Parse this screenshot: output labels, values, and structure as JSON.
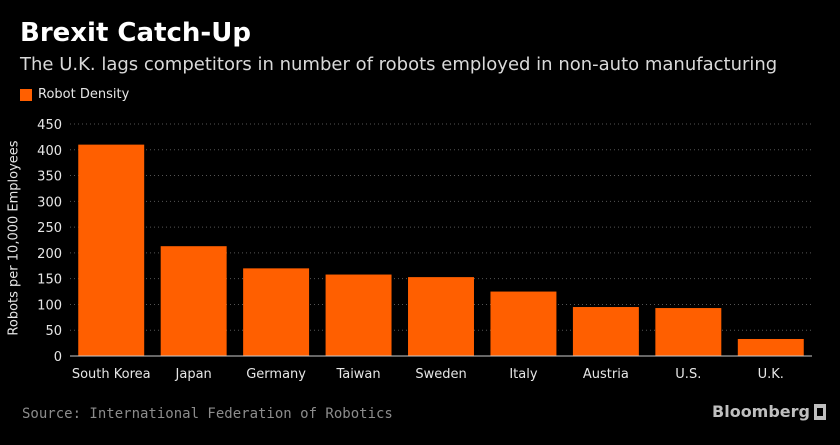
{
  "header": {
    "title": "Brexit Catch-Up",
    "subtitle": "The U.K. lags competitors in number of robots employed in non-auto manufacturing"
  },
  "footer": {
    "source": "Source: International Federation of Robotics",
    "brand": "Bloomberg"
  },
  "colors": {
    "bar": "#ff5f00",
    "background": "#000000",
    "grid": "#555555"
  },
  "chart_data": {
    "type": "bar",
    "title": "Brexit Catch-Up",
    "subtitle": "The U.K. lags competitors in number of robots employed in non-auto manufacturing",
    "xlabel": "",
    "ylabel": "Robots per 10,000 Employees",
    "ylim": [
      0,
      450
    ],
    "yticks": [
      0,
      50,
      100,
      150,
      200,
      250,
      300,
      350,
      400,
      450
    ],
    "grid": true,
    "legend_position": "top-left",
    "categories": [
      "South Korea",
      "Japan",
      "Germany",
      "Taiwan",
      "Sweden",
      "Italy",
      "Austria",
      "U.S.",
      "U.K."
    ],
    "series": [
      {
        "name": "Robot Density",
        "values": [
          410,
          213,
          170,
          158,
          153,
          125,
          95,
          93,
          33
        ]
      }
    ]
  }
}
